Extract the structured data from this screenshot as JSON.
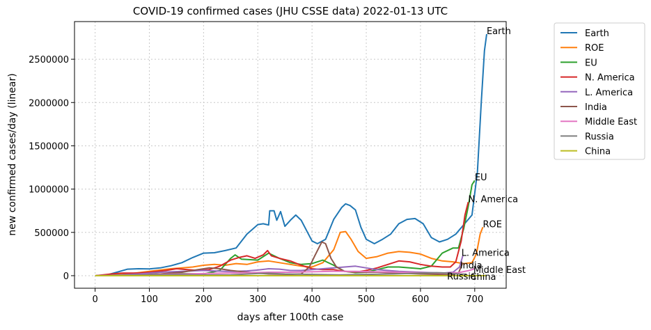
{
  "chart_data": {
    "type": "line",
    "title": "COVID-19 confirmed cases (JHU CSSE data) 2022-01-13 UTC",
    "xlabel": "days after 100th case",
    "ylabel": "new confirmed cases/day (linear)",
    "xlim": [
      -38,
      758
    ],
    "ylim": [
      -145000,
      2935000
    ],
    "x_ticks": [
      0,
      100,
      200,
      300,
      400,
      500,
      600,
      700
    ],
    "y_ticks": [
      0,
      500000,
      1000000,
      1500000,
      2000000,
      2500000
    ],
    "grid": true,
    "legend_position": "outside-right",
    "series": [
      {
        "name": "Earth",
        "color": "#1f77b4",
        "end_label": "Earth",
        "points": [
          [
            0,
            0
          ],
          [
            20,
            5000
          ],
          [
            40,
            40000
          ],
          [
            60,
            75000
          ],
          [
            80,
            80000
          ],
          [
            100,
            78000
          ],
          [
            120,
            90000
          ],
          [
            140,
            115000
          ],
          [
            160,
            150000
          ],
          [
            180,
            210000
          ],
          [
            200,
            260000
          ],
          [
            220,
            265000
          ],
          [
            240,
            290000
          ],
          [
            260,
            320000
          ],
          [
            280,
            480000
          ],
          [
            300,
            590000
          ],
          [
            310,
            600000
          ],
          [
            320,
            585000
          ],
          [
            322,
            750000
          ],
          [
            330,
            750000
          ],
          [
            335,
            640000
          ],
          [
            342,
            740000
          ],
          [
            350,
            570000
          ],
          [
            360,
            640000
          ],
          [
            370,
            700000
          ],
          [
            380,
            640000
          ],
          [
            390,
            520000
          ],
          [
            400,
            400000
          ],
          [
            410,
            370000
          ],
          [
            425,
            420000
          ],
          [
            440,
            650000
          ],
          [
            455,
            790000
          ],
          [
            462,
            830000
          ],
          [
            470,
            810000
          ],
          [
            480,
            760000
          ],
          [
            490,
            560000
          ],
          [
            500,
            420000
          ],
          [
            515,
            370000
          ],
          [
            530,
            420000
          ],
          [
            545,
            480000
          ],
          [
            560,
            600000
          ],
          [
            575,
            650000
          ],
          [
            590,
            660000
          ],
          [
            605,
            600000
          ],
          [
            620,
            440000
          ],
          [
            635,
            390000
          ],
          [
            650,
            420000
          ],
          [
            665,
            480000
          ],
          [
            680,
            590000
          ],
          [
            695,
            700000
          ],
          [
            705,
            1200000
          ],
          [
            712,
            2000000
          ],
          [
            718,
            2600000
          ],
          [
            722,
            2790000
          ]
        ]
      },
      {
        "name": "ROE",
        "color": "#ff7f0e",
        "end_label": "ROE",
        "points": [
          [
            0,
            0
          ],
          [
            30,
            5000
          ],
          [
            60,
            20000
          ],
          [
            100,
            50000
          ],
          [
            140,
            80000
          ],
          [
            180,
            100000
          ],
          [
            200,
            120000
          ],
          [
            220,
            130000
          ],
          [
            240,
            120000
          ],
          [
            260,
            140000
          ],
          [
            280,
            130000
          ],
          [
            300,
            160000
          ],
          [
            320,
            170000
          ],
          [
            340,
            150000
          ],
          [
            360,
            130000
          ],
          [
            380,
            110000
          ],
          [
            400,
            100000
          ],
          [
            420,
            150000
          ],
          [
            440,
            300000
          ],
          [
            452,
            500000
          ],
          [
            462,
            510000
          ],
          [
            472,
            420000
          ],
          [
            485,
            280000
          ],
          [
            500,
            200000
          ],
          [
            520,
            220000
          ],
          [
            540,
            260000
          ],
          [
            560,
            280000
          ],
          [
            580,
            270000
          ],
          [
            600,
            250000
          ],
          [
            620,
            200000
          ],
          [
            640,
            170000
          ],
          [
            660,
            160000
          ],
          [
            680,
            140000
          ],
          [
            695,
            150000
          ],
          [
            703,
            250000
          ],
          [
            710,
            480000
          ],
          [
            715,
            560000
          ]
        ]
      },
      {
        "name": "EU",
        "color": "#2ca02c",
        "end_label": "EU",
        "points": [
          [
            0,
            0
          ],
          [
            40,
            5000
          ],
          [
            80,
            15000
          ],
          [
            120,
            20000
          ],
          [
            160,
            25000
          ],
          [
            200,
            20000
          ],
          [
            230,
            60000
          ],
          [
            250,
            200000
          ],
          [
            258,
            240000
          ],
          [
            270,
            190000
          ],
          [
            300,
            180000
          ],
          [
            320,
            260000
          ],
          [
            340,
            200000
          ],
          [
            360,
            150000
          ],
          [
            380,
            130000
          ],
          [
            400,
            140000
          ],
          [
            420,
            180000
          ],
          [
            440,
            120000
          ],
          [
            460,
            50000
          ],
          [
            480,
            35000
          ],
          [
            500,
            40000
          ],
          [
            520,
            70000
          ],
          [
            540,
            100000
          ],
          [
            560,
            100000
          ],
          [
            580,
            90000
          ],
          [
            600,
            80000
          ],
          [
            620,
            110000
          ],
          [
            640,
            260000
          ],
          [
            660,
            320000
          ],
          [
            670,
            320000
          ],
          [
            680,
            550000
          ],
          [
            688,
            800000
          ],
          [
            695,
            1050000
          ],
          [
            700,
            1100000
          ]
        ]
      },
      {
        "name": "N. America",
        "color": "#d62728",
        "end_label": "N. America",
        "points": [
          [
            0,
            0
          ],
          [
            30,
            20000
          ],
          [
            50,
            30000
          ],
          [
            80,
            30000
          ],
          [
            100,
            40000
          ],
          [
            130,
            60000
          ],
          [
            150,
            80000
          ],
          [
            170,
            70000
          ],
          [
            190,
            60000
          ],
          [
            210,
            70000
          ],
          [
            230,
            110000
          ],
          [
            250,
            180000
          ],
          [
            265,
            210000
          ],
          [
            280,
            230000
          ],
          [
            295,
            200000
          ],
          [
            310,
            240000
          ],
          [
            318,
            290000
          ],
          [
            325,
            230000
          ],
          [
            340,
            200000
          ],
          [
            360,
            170000
          ],
          [
            380,
            120000
          ],
          [
            400,
            80000
          ],
          [
            420,
            70000
          ],
          [
            440,
            70000
          ],
          [
            460,
            50000
          ],
          [
            480,
            40000
          ],
          [
            500,
            60000
          ],
          [
            520,
            90000
          ],
          [
            540,
            130000
          ],
          [
            560,
            170000
          ],
          [
            580,
            160000
          ],
          [
            600,
            130000
          ],
          [
            620,
            110000
          ],
          [
            640,
            100000
          ],
          [
            655,
            100000
          ],
          [
            665,
            160000
          ],
          [
            675,
            400000
          ],
          [
            682,
            700000
          ],
          [
            688,
            850000
          ]
        ]
      },
      {
        "name": "L. America",
        "color": "#9467bd",
        "end_label": "L. America",
        "points": [
          [
            0,
            0
          ],
          [
            40,
            5000
          ],
          [
            80,
            20000
          ],
          [
            120,
            40000
          ],
          [
            160,
            50000
          ],
          [
            180,
            55000
          ],
          [
            200,
            60000
          ],
          [
            220,
            55000
          ],
          [
            240,
            50000
          ],
          [
            260,
            50000
          ],
          [
            280,
            55000
          ],
          [
            300,
            65000
          ],
          [
            320,
            80000
          ],
          [
            340,
            75000
          ],
          [
            360,
            60000
          ],
          [
            380,
            60000
          ],
          [
            400,
            70000
          ],
          [
            420,
            80000
          ],
          [
            440,
            90000
          ],
          [
            460,
            100000
          ],
          [
            480,
            110000
          ],
          [
            500,
            90000
          ],
          [
            520,
            70000
          ],
          [
            540,
            60000
          ],
          [
            560,
            50000
          ],
          [
            580,
            45000
          ],
          [
            600,
            40000
          ],
          [
            620,
            35000
          ],
          [
            640,
            30000
          ],
          [
            660,
            40000
          ],
          [
            672,
            100000
          ],
          [
            678,
            230000
          ]
        ]
      },
      {
        "name": "India",
        "color": "#8c564b",
        "end_label": "India",
        "points": [
          [
            0,
            0
          ],
          [
            80,
            5000
          ],
          [
            120,
            20000
          ],
          [
            160,
            40000
          ],
          [
            190,
            70000
          ],
          [
            210,
            90000
          ],
          [
            230,
            80000
          ],
          [
            250,
            60000
          ],
          [
            280,
            40000
          ],
          [
            320,
            20000
          ],
          [
            360,
            15000
          ],
          [
            380,
            20000
          ],
          [
            395,
            100000
          ],
          [
            405,
            230000
          ],
          [
            418,
            390000
          ],
          [
            425,
            370000
          ],
          [
            435,
            200000
          ],
          [
            445,
            100000
          ],
          [
            460,
            50000
          ],
          [
            490,
            40000
          ],
          [
            520,
            40000
          ],
          [
            560,
            30000
          ],
          [
            600,
            20000
          ],
          [
            640,
            15000
          ],
          [
            660,
            10000
          ],
          [
            670,
            30000
          ],
          [
            678,
            150000
          ]
        ]
      },
      {
        "name": "Middle East",
        "color": "#e377c2",
        "end_label": "Middle East",
        "points": [
          [
            0,
            0
          ],
          [
            40,
            5000
          ],
          [
            80,
            10000
          ],
          [
            120,
            15000
          ],
          [
            160,
            20000
          ],
          [
            200,
            25000
          ],
          [
            240,
            30000
          ],
          [
            280,
            35000
          ],
          [
            320,
            40000
          ],
          [
            360,
            40000
          ],
          [
            400,
            45000
          ],
          [
            440,
            50000
          ],
          [
            480,
            50000
          ],
          [
            520,
            45000
          ],
          [
            560,
            40000
          ],
          [
            600,
            35000
          ],
          [
            640,
            30000
          ],
          [
            670,
            35000
          ],
          [
            690,
            60000
          ],
          [
            700,
            80000
          ]
        ]
      },
      {
        "name": "Russia",
        "color": "#7f7f7f",
        "end_label": "Russia",
        "points": [
          [
            0,
            0
          ],
          [
            50,
            5000
          ],
          [
            100,
            10000
          ],
          [
            150,
            12000
          ],
          [
            200,
            8000
          ],
          [
            250,
            10000
          ],
          [
            300,
            25000
          ],
          [
            320,
            28000
          ],
          [
            350,
            20000
          ],
          [
            400,
            15000
          ],
          [
            450,
            10000
          ],
          [
            500,
            15000
          ],
          [
            550,
            20000
          ],
          [
            600,
            30000
          ],
          [
            630,
            35000
          ],
          [
            650,
            30000
          ],
          [
            670,
            20000
          ],
          [
            680,
            18000
          ],
          [
            685,
            20000
          ]
        ]
      },
      {
        "name": "China",
        "color": "#bcbd22",
        "end_label": "China",
        "points": [
          [
            0,
            0
          ],
          [
            100,
            0
          ],
          [
            200,
            0
          ],
          [
            300,
            0
          ],
          [
            400,
            0
          ],
          [
            500,
            0
          ],
          [
            600,
            0
          ],
          [
            700,
            100
          ],
          [
            720,
            200
          ]
        ]
      }
    ]
  }
}
